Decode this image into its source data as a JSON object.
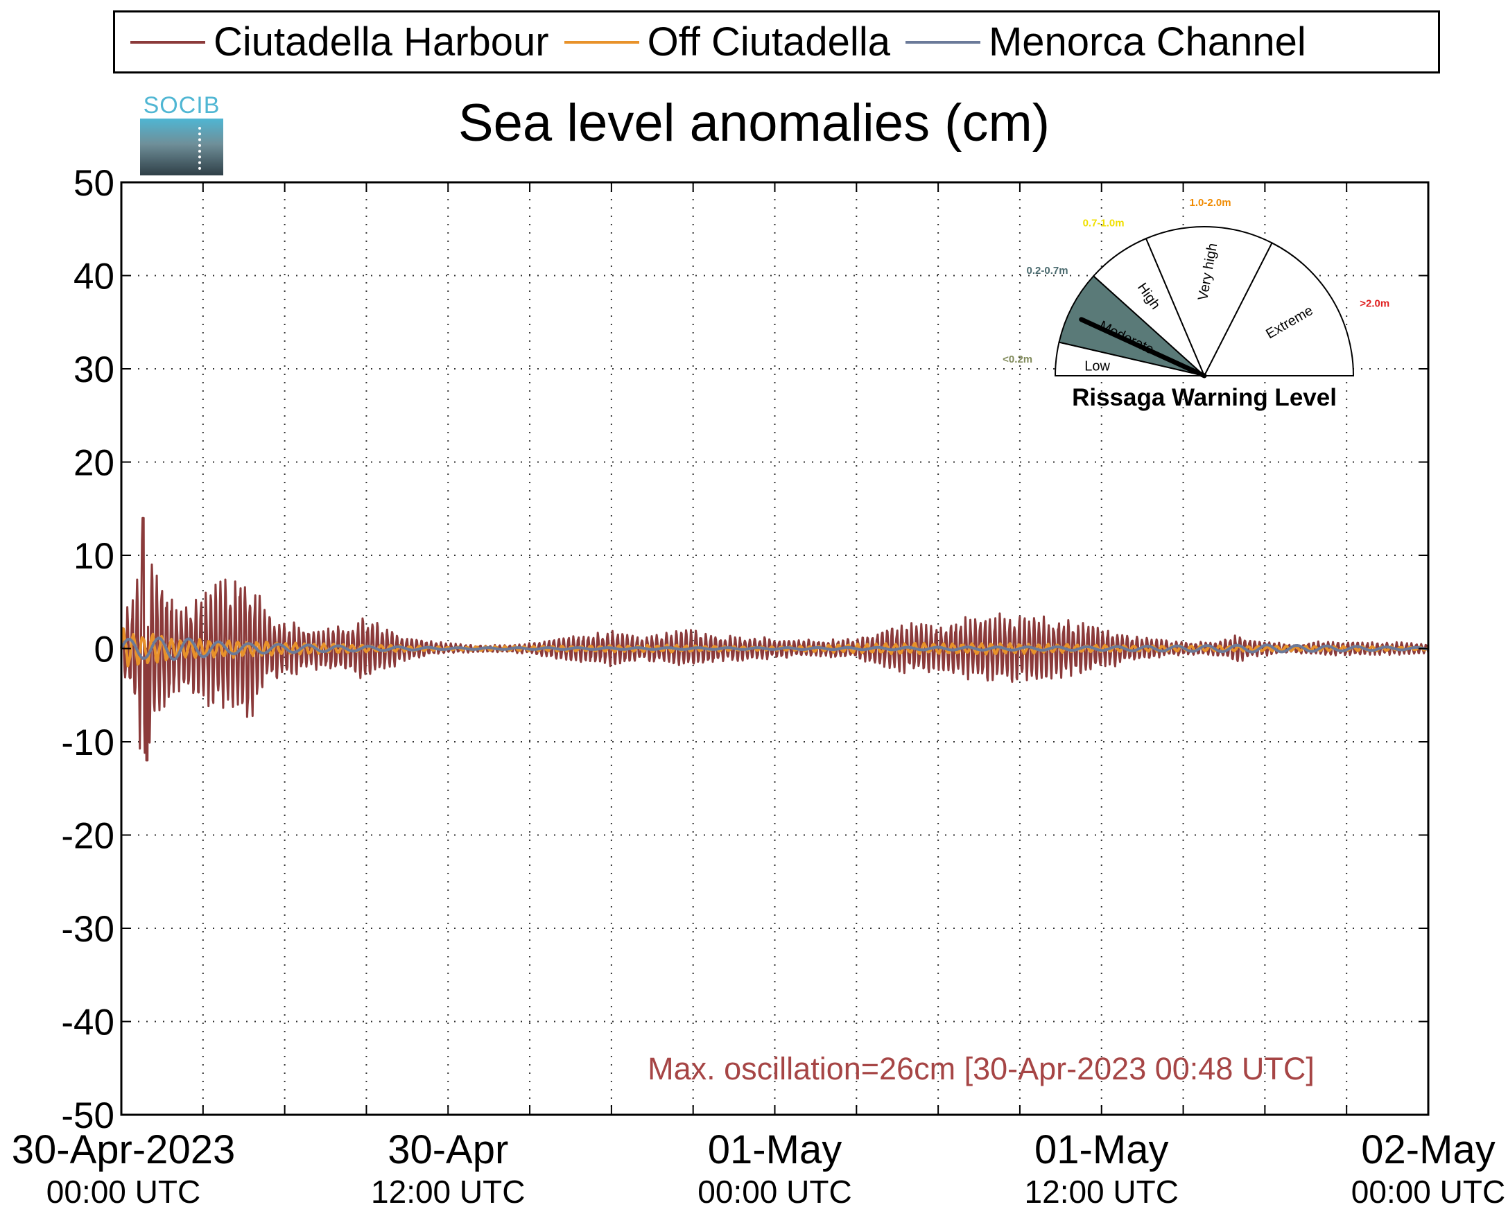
{
  "legend": [
    {
      "label": "Ciutadella Harbour",
      "color": "#8b3a3a"
    },
    {
      "label": "Off Ciutadella",
      "color": "#e8922a"
    },
    {
      "label": "Menorca Channel",
      "color": "#6b7a99"
    }
  ],
  "logo": {
    "text": "SOCIB",
    "icon": "socib-logo-icon"
  },
  "chart_data": {
    "type": "line",
    "title": "Sea level anomalies (cm)",
    "ylim": [
      -50,
      50
    ],
    "yticks": [
      50,
      40,
      30,
      20,
      10,
      0,
      -10,
      -20,
      -30,
      -40,
      -50
    ],
    "xlim_hours": [
      0,
      48
    ],
    "grid": true,
    "legend_position": "top",
    "xticks": [
      {
        "hour": 0,
        "label": "30-Apr-2023",
        "sublabel": "00:00 UTC"
      },
      {
        "hour": 12,
        "label": "30-Apr",
        "sublabel": "12:00 UTC"
      },
      {
        "hour": 24,
        "label": "01-May",
        "sublabel": "00:00 UTC"
      },
      {
        "hour": 36,
        "label": "01-May",
        "sublabel": "12:00 UTC"
      },
      {
        "hour": 48,
        "label": "02-May",
        "sublabel": "00:00 UTC"
      }
    ],
    "series": [
      {
        "name": "Ciutadella Harbour",
        "color": "#8b3a3a",
        "envelope": [
          [
            0,
            3
          ],
          [
            0.4,
            6
          ],
          [
            0.8,
            13
          ],
          [
            1.2,
            10
          ],
          [
            1.6,
            7
          ],
          [
            2.2,
            5
          ],
          [
            3,
            6
          ],
          [
            3.8,
            8
          ],
          [
            4.6,
            9
          ],
          [
            5.4,
            4
          ],
          [
            6.2,
            3
          ],
          [
            7,
            2.5
          ],
          [
            8,
            2.5
          ],
          [
            9,
            3.5
          ],
          [
            10,
            2
          ],
          [
            11,
            1
          ],
          [
            12,
            0.6
          ],
          [
            13,
            0.4
          ],
          [
            14,
            0.4
          ],
          [
            15,
            0.6
          ],
          [
            16,
            1.2
          ],
          [
            17,
            1.5
          ],
          [
            18,
            2
          ],
          [
            19,
            1.5
          ],
          [
            20,
            1.8
          ],
          [
            21,
            2.1
          ],
          [
            22,
            1.5
          ],
          [
            23,
            1.3
          ],
          [
            24,
            1.2
          ],
          [
            25,
            1.0
          ],
          [
            26,
            1.0
          ],
          [
            27,
            1.1
          ],
          [
            28,
            2.3
          ],
          [
            29,
            2.8
          ],
          [
            30,
            2.5
          ],
          [
            31,
            3.5
          ],
          [
            32,
            3.8
          ],
          [
            33,
            4.0
          ],
          [
            34,
            3.5
          ],
          [
            35,
            3.0
          ],
          [
            36,
            2.5
          ],
          [
            37,
            1.5
          ],
          [
            38,
            1.0
          ],
          [
            39,
            0.8
          ],
          [
            40,
            0.7
          ],
          [
            41,
            1.5
          ],
          [
            42,
            0.8
          ],
          [
            43,
            0.5
          ],
          [
            44,
            0.8
          ],
          [
            45,
            0.8
          ],
          [
            46,
            0.7
          ],
          [
            47,
            0.7
          ],
          [
            48,
            0.6
          ]
        ],
        "peak_max": 14,
        "peak_min": -12
      },
      {
        "name": "Off Ciutadella",
        "color": "#e8922a",
        "envelope": [
          [
            0,
            2.5
          ],
          [
            0.5,
            2.0
          ],
          [
            1,
            1.8
          ],
          [
            2,
            1.2
          ],
          [
            3,
            1.0
          ],
          [
            4,
            1.0
          ],
          [
            5,
            0.9
          ],
          [
            6,
            0.7
          ],
          [
            8,
            0.5
          ],
          [
            10,
            0.4
          ],
          [
            12,
            0.2
          ],
          [
            16,
            0.3
          ],
          [
            20,
            0.4
          ],
          [
            24,
            0.2
          ],
          [
            28,
            0.6
          ],
          [
            32,
            0.6
          ],
          [
            36,
            0.4
          ],
          [
            40,
            0.3
          ],
          [
            44,
            0.3
          ],
          [
            48,
            0.2
          ]
        ]
      },
      {
        "name": "Menorca Channel",
        "color": "#6b7a99",
        "envelope": [
          [
            0,
            1.0
          ],
          [
            2,
            1.2
          ],
          [
            4,
            0.6
          ],
          [
            8,
            0.3
          ],
          [
            12,
            0.1
          ],
          [
            24,
            0.1
          ],
          [
            36,
            0.2
          ],
          [
            42,
            0.4
          ],
          [
            48,
            0.1
          ]
        ]
      }
    ],
    "annotation": "Max. oscillation=26cm [30-Apr-2023 00:48 UTC]",
    "annotation_color": "#a64545"
  },
  "gauge": {
    "title": "Rissaga Warning Level",
    "current_level": "Moderate",
    "needle_value_m": 0.4,
    "sectors": [
      {
        "name": "Low",
        "range": "<0.2m",
        "color": "#808a5a",
        "active": false
      },
      {
        "name": "Moderate",
        "range": "0.2-0.7m",
        "color": "#4a6a6e",
        "active": true,
        "fill": "#5a7a78"
      },
      {
        "name": "High",
        "range": "0.7-1.0m",
        "color": "#f0e000",
        "active": false
      },
      {
        "name": "Very high",
        "range": "1.0-2.0m",
        "color": "#f08a00",
        "active": false
      },
      {
        "name": "Extreme",
        "range": ">2.0m",
        "color": "#e02020",
        "active": false
      }
    ]
  }
}
